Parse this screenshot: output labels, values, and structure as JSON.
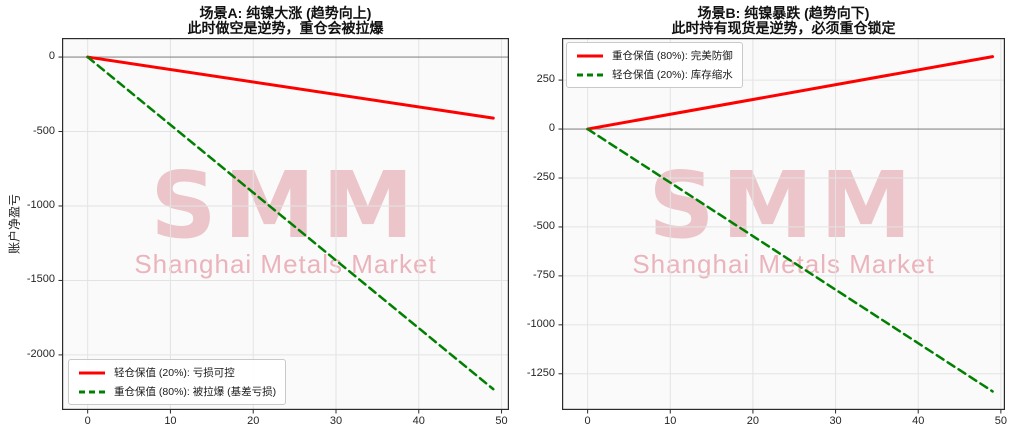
{
  "figure": {
    "watermark": {
      "logo": "SMM",
      "subtitle": "Shanghai Metals Market"
    },
    "colors": {
      "red_line": "#ff0000",
      "green_line": "#008000",
      "grid": "#e3e3e3",
      "axes_background": "#fafafa",
      "spine": "#2b2b2b",
      "zero_line": "#8a8a8a",
      "watermark_logo": "rgba(190,30,45,0.24)",
      "watermark_subtitle": "rgba(205,45,70,0.35)"
    }
  },
  "chart_data": [
    {
      "type": "line",
      "title": "场景A: 纯镍大涨 (趋势向上)",
      "subtitle": "此时做空是逆势，重仓会被拉爆",
      "xlabel": "",
      "ylabel": "账户净盈亏",
      "x_ticks": [
        0,
        10,
        20,
        30,
        40,
        50
      ],
      "y_ticks": [
        0,
        -500,
        -1000,
        -1500,
        -2000
      ],
      "xlim": [
        -3.1,
        50.9
      ],
      "ylim": [
        -2370,
        128
      ],
      "grid": true,
      "zero_line": true,
      "legend_position": "lower-left",
      "series": [
        {
          "name": "轻仓保值 (20%): 亏损可控",
          "color": "#ff0000",
          "style": "solid",
          "x": [
            0,
            49
          ],
          "y": [
            0,
            -410
          ]
        },
        {
          "name": "重仓保值 (80%): 被拉爆 (基差亏损)",
          "color": "#008000",
          "style": "dashed",
          "x": [
            0,
            49
          ],
          "y": [
            0,
            -2230
          ]
        }
      ]
    },
    {
      "type": "line",
      "title": "场景B: 纯镍暴跌 (趋势向下)",
      "subtitle": "此时持有现货是逆势，必须重仓锁定",
      "xlabel": "",
      "ylabel": "",
      "x_ticks": [
        0,
        10,
        20,
        30,
        40,
        50
      ],
      "y_ticks": [
        250,
        0,
        -250,
        -500,
        -750,
        -1000,
        -1250
      ],
      "xlim": [
        -3.1,
        50.5
      ],
      "ylim": [
        -1435,
        465
      ],
      "grid": true,
      "zero_line": true,
      "legend_position": "upper-left",
      "series": [
        {
          "name": "重仓保值 (80%): 完美防御",
          "color": "#ff0000",
          "style": "solid",
          "x": [
            0,
            49
          ],
          "y": [
            0,
            370
          ]
        },
        {
          "name": "轻仓保值 (20%): 库存缩水",
          "color": "#008000",
          "style": "dashed",
          "x": [
            0,
            49
          ],
          "y": [
            0,
            -1340
          ]
        }
      ]
    }
  ]
}
